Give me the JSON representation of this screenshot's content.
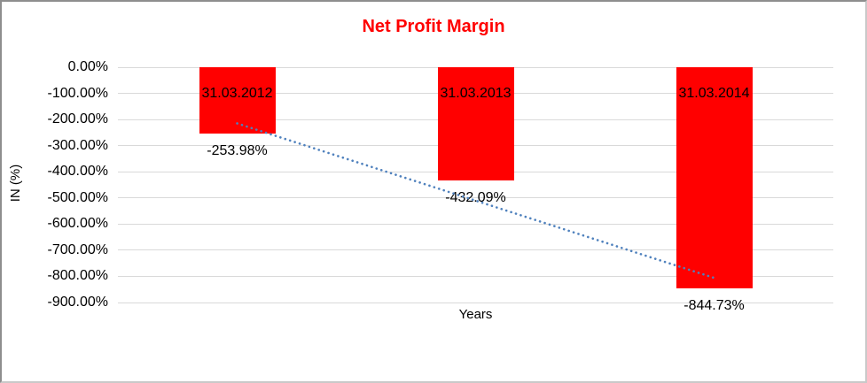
{
  "chart_data": {
    "type": "bar",
    "title": "Net Profit Margin",
    "title_color": "#FF0000",
    "categories": [
      "31.03.2012",
      "31.03.2013",
      "31.03.2014"
    ],
    "values": [
      -253.98,
      -432.09,
      -844.73
    ],
    "data_labels": [
      "-253.98%",
      "-432.09%",
      "-844.73%"
    ],
    "bar_color": "#FF0000",
    "xlabel": "Years",
    "ylabel": "IN (%)",
    "ylim": [
      -900,
      0
    ],
    "ytick_step": 100,
    "ytick_labels": [
      "0.00%",
      "-100.00%",
      "-200.00%",
      "-300.00%",
      "-400.00%",
      "-500.00%",
      "-600.00%",
      "-700.00%",
      "-800.00%",
      "-900.00%"
    ],
    "grid": true,
    "gridline_color": "#D9D9D9",
    "text_color": "#000000",
    "legend_position": "none",
    "trendline": {
      "type": "linear",
      "color": "#4F81BD",
      "dash": "dotted"
    }
  }
}
